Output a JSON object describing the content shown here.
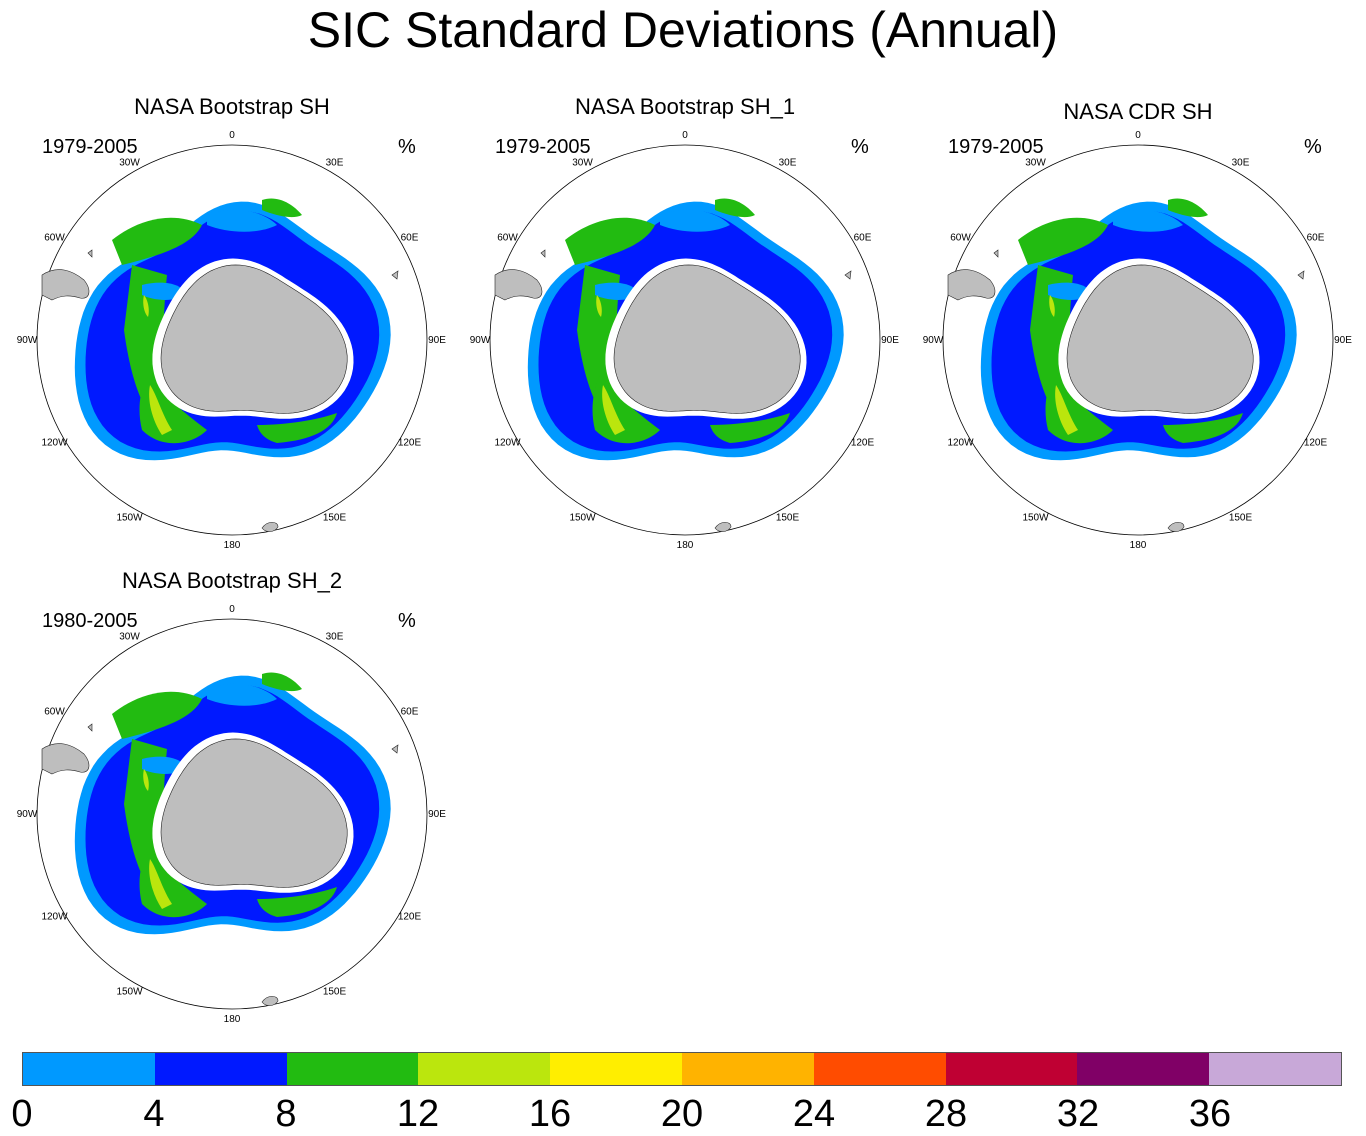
{
  "title": "SIC Standard Deviations (Annual)",
  "panels": [
    {
      "title": "NASA Bootstrap SH",
      "period": "1979-2005",
      "units": "%"
    },
    {
      "title": "NASA Bootstrap SH_1",
      "period": "1979-2005",
      "units": "%"
    },
    {
      "title": "NASA CDR SH",
      "period": "1979-2005",
      "units": "%"
    },
    {
      "title": "NASA Bootstrap SH_2",
      "period": "1980-2005",
      "units": "%"
    }
  ],
  "longitude_labels": [
    "0",
    "30E",
    "60E",
    "90E",
    "120E",
    "150E",
    "180",
    "150W",
    "120W",
    "90W",
    "60W",
    "30W"
  ],
  "colorbar": {
    "colors": [
      "#0099ff",
      "#0019ff",
      "#22bb11",
      "#bbe60d",
      "#ffee00",
      "#ffb300",
      "#ff4c00",
      "#bf0033",
      "#800066",
      "#c8a8d8"
    ],
    "labels": [
      "0",
      "4",
      "8",
      "12",
      "16",
      "20",
      "24",
      "28",
      "32",
      "36"
    ]
  },
  "legend_colors": {
    "land": "#bebebe",
    "zero": "#ffffff"
  }
}
